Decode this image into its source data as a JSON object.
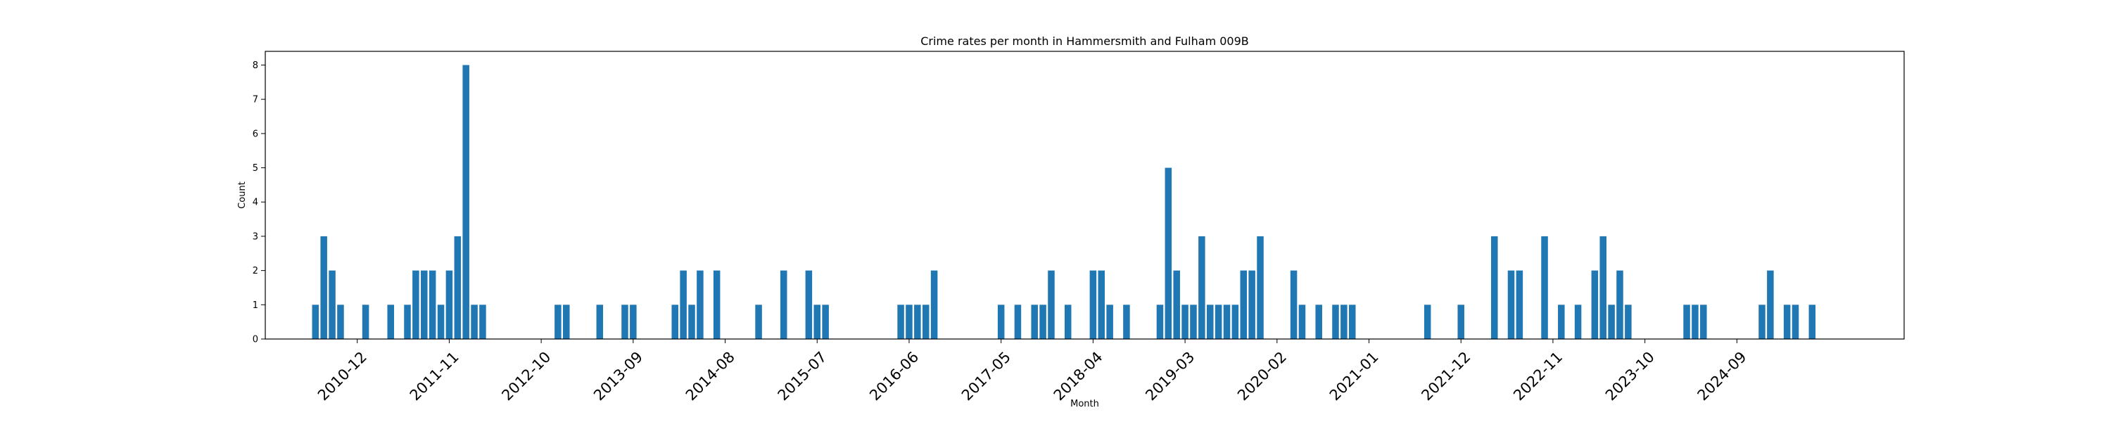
{
  "chart_data": {
    "type": "bar",
    "title": "Crime rates per month in Hammersmith and Fulham 009B",
    "xlabel": "Month",
    "ylabel": "Count",
    "ylim": [
      0,
      8.4
    ],
    "xlim": [
      "2010-01",
      "2026-05"
    ],
    "yticks": [
      0,
      1,
      2,
      3,
      4,
      5,
      6,
      7,
      8
    ],
    "xticks": [
      "2010-12",
      "2011-11",
      "2012-10",
      "2013-09",
      "2014-08",
      "2015-07",
      "2016-06",
      "2017-05",
      "2018-04",
      "2019-03",
      "2020-02",
      "2021-01",
      "2021-12",
      "2022-11",
      "2023-10",
      "2024-09"
    ],
    "grid": false,
    "bar_color": "#1f77b4",
    "x": [
      "2010-07",
      "2010-08",
      "2010-09",
      "2010-10",
      "2011-01",
      "2011-04",
      "2011-06",
      "2011-07",
      "2011-08",
      "2011-09",
      "2011-10",
      "2011-11",
      "2011-12",
      "2012-01",
      "2012-02",
      "2012-03",
      "2012-12",
      "2013-01",
      "2013-05",
      "2013-08",
      "2013-09",
      "2014-02",
      "2014-03",
      "2014-04",
      "2014-05",
      "2014-07",
      "2015-00",
      "2015-03",
      "2015-06",
      "2015-07",
      "2015-08",
      "2016-05",
      "2016-06",
      "2016-07",
      "2016-08",
      "2016-09",
      "2017-05",
      "2017-07",
      "2017-09",
      "2017-10",
      "2017-11",
      "2018-01",
      "2018-04",
      "2018-05",
      "2018-06",
      "2018-08",
      "2018-12",
      "2019-01",
      "2019-02",
      "2019-03",
      "2019-04",
      "2019-05",
      "2019-06",
      "2019-07",
      "2019-08",
      "2019-09",
      "2019-10",
      "2019-11",
      "2019-12",
      "2020-04",
      "2020-05",
      "2020-07",
      "2020-09",
      "2020-10",
      "2020-11",
      "2021-08",
      "2021-12",
      "2022-04",
      "2022-06",
      "2022-07",
      "2022-10",
      "2022-12",
      "2023-02",
      "2023-04",
      "2023-05",
      "2023-06",
      "2023-07",
      "2023-08",
      "2024-03",
      "2024-04",
      "2024-05",
      "2025-00",
      "2025-01",
      "2025-03",
      "2025-04",
      "2025-06"
    ],
    "values": [
      1,
      3,
      2,
      1,
      1,
      1,
      1,
      2,
      2,
      2,
      1,
      2,
      3,
      8,
      1,
      1,
      1,
      1,
      1,
      1,
      1,
      1,
      2,
      1,
      2,
      2,
      1,
      2,
      2,
      1,
      1,
      1,
      1,
      1,
      1,
      2,
      1,
      1,
      1,
      1,
      2,
      1,
      2,
      2,
      1,
      1,
      1,
      5,
      2,
      1,
      1,
      3,
      1,
      1,
      1,
      1,
      2,
      2,
      3,
      2,
      1,
      1,
      1,
      1,
      1,
      1,
      1,
      3,
      2,
      2,
      3,
      1,
      1,
      2,
      3,
      1,
      2,
      1,
      1,
      1,
      1,
      1,
      2,
      1,
      1,
      1
    ]
  }
}
